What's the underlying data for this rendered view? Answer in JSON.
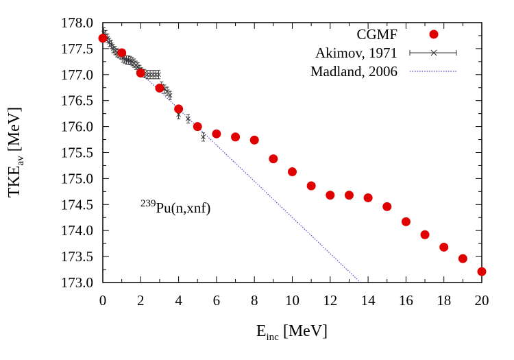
{
  "chart_data": {
    "type": "scatter",
    "xlabel": {
      "main": "E",
      "sub": "inc",
      "rest": " [MeV]"
    },
    "ylabel": {
      "main": "TKE",
      "sub": "av",
      "rest": " [MeV]"
    },
    "xlim": [
      0,
      20
    ],
    "ylim": [
      173.0,
      178.0
    ],
    "xticks": [
      0,
      2,
      4,
      6,
      8,
      10,
      12,
      14,
      16,
      18,
      20
    ],
    "yticks": [
      "173.0",
      "173.5",
      "174.0",
      "174.5",
      "175.0",
      "175.5",
      "176.0",
      "176.5",
      "177.0",
      "177.5",
      "178.0"
    ],
    "grid": false,
    "legend_position": "top-right",
    "annotation": {
      "sup": "239",
      "text": "Pu(n,xnf)"
    },
    "series": [
      {
        "name": "CGMF",
        "style": "filled-circle",
        "color": "#e00000",
        "x": [
          0,
          1,
          2,
          3,
          4,
          5,
          6,
          7,
          8,
          9,
          10,
          11,
          12,
          13,
          14,
          15,
          16,
          17,
          18,
          19,
          20
        ],
        "y": [
          177.7,
          177.42,
          177.03,
          176.74,
          176.34,
          176.0,
          175.86,
          175.8,
          175.74,
          175.38,
          175.13,
          174.86,
          174.68,
          174.68,
          174.63,
          174.46,
          174.17,
          173.92,
          173.68,
          173.46,
          173.21
        ]
      },
      {
        "name": "Akimov, 1971",
        "style": "cross-errorbar",
        "color": "#333333",
        "x": [
          0.05,
          0.15,
          0.25,
          0.35,
          0.45,
          0.55,
          0.65,
          0.75,
          0.85,
          0.95,
          1.05,
          1.15,
          1.25,
          1.35,
          1.45,
          1.55,
          1.65,
          1.75,
          1.85,
          1.95,
          2.05,
          2.2,
          2.35,
          2.5,
          2.65,
          2.8,
          2.95,
          3.1,
          3.25,
          3.4,
          3.55,
          4.0,
          4.5,
          5.3
        ],
        "y": [
          177.8,
          177.75,
          177.7,
          177.62,
          177.58,
          177.5,
          177.46,
          177.42,
          177.4,
          177.38,
          177.32,
          177.3,
          177.28,
          177.28,
          177.27,
          177.25,
          177.22,
          177.18,
          177.15,
          177.1,
          177.05,
          177.02,
          177.0,
          177.0,
          177.0,
          177.0,
          177.0,
          176.78,
          176.72,
          176.68,
          176.6,
          176.23,
          176.15,
          175.8
        ],
        "yerr": [
          0.1,
          0.1,
          0.08,
          0.08,
          0.08,
          0.08,
          0.08,
          0.08,
          0.08,
          0.08,
          0.08,
          0.08,
          0.08,
          0.08,
          0.08,
          0.08,
          0.08,
          0.08,
          0.08,
          0.08,
          0.08,
          0.08,
          0.08,
          0.08,
          0.08,
          0.08,
          0.08,
          0.08,
          0.08,
          0.08,
          0.08,
          0.08,
          0.08,
          0.08
        ]
      },
      {
        "name": "Madland, 2006",
        "style": "dotted-line",
        "color": "#4444cc",
        "x": [
          0,
          13.6
        ],
        "y": [
          177.73,
          173.0
        ]
      }
    ]
  }
}
